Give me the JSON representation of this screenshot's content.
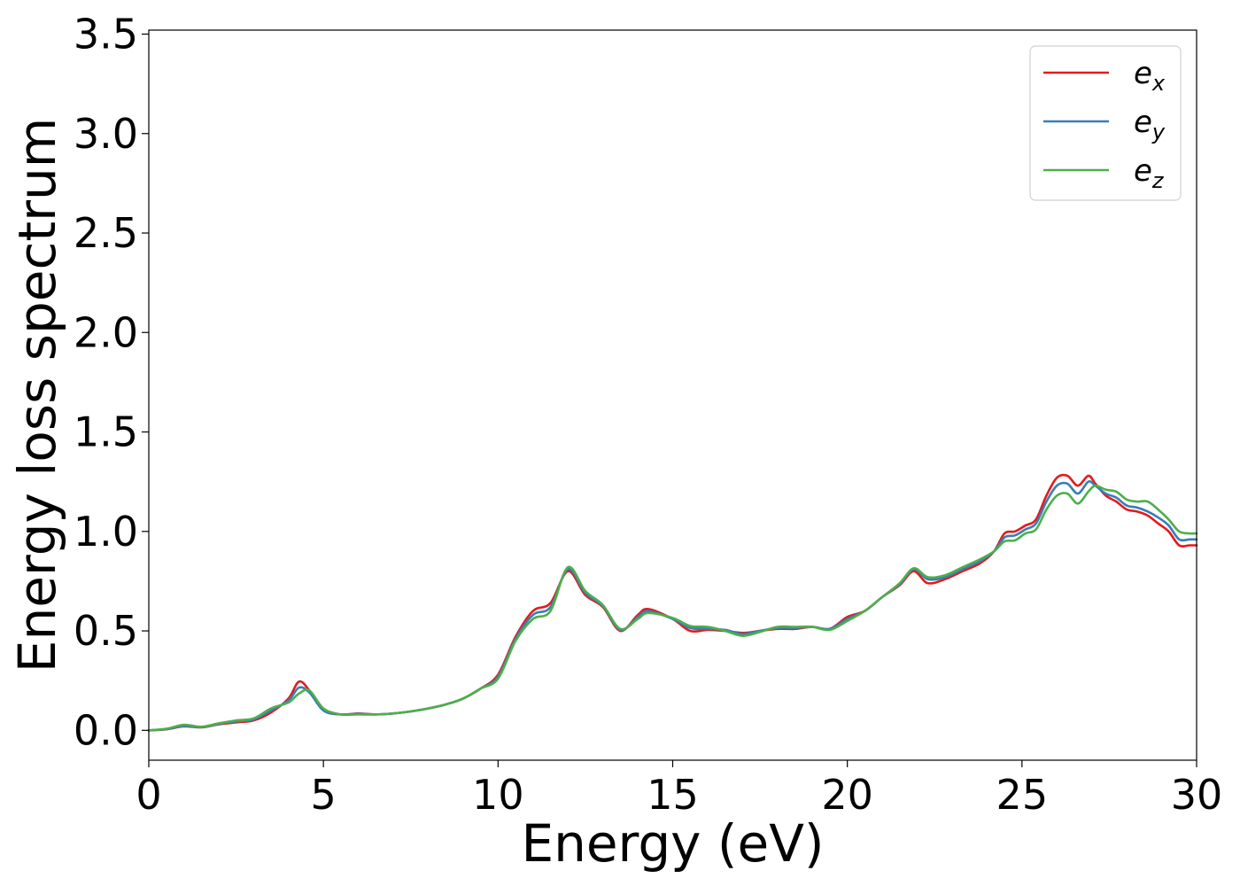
{
  "chart_data": {
    "type": "line",
    "title": "",
    "xlabel": "Energy (eV)",
    "ylabel": "Energy loss spectrum",
    "xlim": [
      0,
      30
    ],
    "ylim": [
      -0.15,
      3.52
    ],
    "xticks": [
      0,
      5,
      10,
      15,
      20,
      25,
      30
    ],
    "xtick_labels": [
      "0",
      "5",
      "10",
      "15",
      "20",
      "25",
      "30"
    ],
    "yticks": [
      0.0,
      0.5,
      1.0,
      1.5,
      2.0,
      2.5,
      3.0,
      3.5
    ],
    "ytick_labels": [
      "0.0",
      "0.5",
      "1.0",
      "1.5",
      "2.0",
      "2.5",
      "3.0",
      "3.5"
    ],
    "grid": false,
    "legend_position": "top-right",
    "series": [
      {
        "name": "e_x",
        "label_base": "e",
        "label_sub": "x",
        "color": "#e41a1c",
        "x": [
          0,
          0.5,
          1.0,
          1.5,
          2.0,
          2.5,
          3.0,
          3.5,
          4.0,
          4.3,
          4.6,
          5.0,
          5.5,
          6.0,
          6.5,
          7.0,
          7.5,
          8.0,
          8.5,
          9.0,
          9.5,
          10.0,
          10.5,
          11.0,
          11.5,
          12.0,
          12.5,
          13.0,
          13.5,
          14.0,
          14.3,
          15.0,
          15.5,
          16.0,
          16.5,
          17.0,
          17.5,
          18.0,
          18.5,
          19.0,
          19.5,
          20.0,
          20.5,
          21.0,
          21.5,
          21.9,
          22.3,
          22.8,
          23.3,
          23.8,
          24.2,
          24.5,
          24.8,
          25.1,
          25.4,
          25.7,
          26.0,
          26.3,
          26.6,
          26.9,
          27.1,
          27.4,
          27.7,
          28.0,
          28.3,
          28.6,
          28.9,
          29.2,
          29.5,
          29.8,
          30.0
        ],
        "y": [
          0.0,
          0.005,
          0.02,
          0.015,
          0.03,
          0.04,
          0.05,
          0.09,
          0.16,
          0.245,
          0.2,
          0.1,
          0.08,
          0.085,
          0.08,
          0.085,
          0.095,
          0.11,
          0.13,
          0.16,
          0.21,
          0.28,
          0.47,
          0.6,
          0.64,
          0.8,
          0.68,
          0.62,
          0.5,
          0.58,
          0.61,
          0.56,
          0.5,
          0.505,
          0.5,
          0.49,
          0.5,
          0.51,
          0.51,
          0.52,
          0.51,
          0.57,
          0.6,
          0.67,
          0.73,
          0.8,
          0.74,
          0.76,
          0.8,
          0.84,
          0.9,
          0.99,
          1.0,
          1.03,
          1.06,
          1.18,
          1.27,
          1.28,
          1.23,
          1.28,
          1.24,
          1.18,
          1.15,
          1.11,
          1.1,
          1.08,
          1.04,
          1.0,
          0.93,
          0.93,
          0.93
        ]
      },
      {
        "name": "e_y",
        "label_base": "e",
        "label_sub": "y",
        "color": "#377eb8",
        "x": [
          0,
          0.5,
          1.0,
          1.5,
          2.0,
          2.5,
          3.0,
          3.5,
          4.0,
          4.3,
          4.6,
          5.0,
          5.5,
          6.0,
          6.5,
          7.0,
          7.5,
          8.0,
          8.5,
          9.0,
          9.5,
          10.0,
          10.5,
          11.0,
          11.5,
          12.0,
          12.5,
          13.0,
          13.5,
          14.0,
          14.3,
          15.0,
          15.5,
          16.0,
          16.5,
          17.0,
          17.5,
          18.0,
          18.5,
          19.0,
          19.5,
          20.0,
          20.5,
          21.0,
          21.5,
          21.9,
          22.3,
          22.8,
          23.3,
          23.8,
          24.2,
          24.5,
          24.8,
          25.1,
          25.4,
          25.7,
          26.0,
          26.3,
          26.6,
          26.9,
          27.1,
          27.4,
          27.7,
          28.0,
          28.3,
          28.6,
          28.9,
          29.2,
          29.5,
          29.8,
          30.0
        ],
        "y": [
          0.0,
          0.006,
          0.022,
          0.016,
          0.032,
          0.045,
          0.055,
          0.1,
          0.15,
          0.215,
          0.19,
          0.1,
          0.08,
          0.083,
          0.08,
          0.085,
          0.095,
          0.11,
          0.13,
          0.16,
          0.21,
          0.27,
          0.46,
          0.58,
          0.62,
          0.81,
          0.69,
          0.625,
          0.505,
          0.57,
          0.6,
          0.56,
          0.515,
          0.51,
          0.505,
          0.485,
          0.5,
          0.515,
          0.515,
          0.52,
          0.51,
          0.56,
          0.6,
          0.67,
          0.735,
          0.81,
          0.76,
          0.77,
          0.81,
          0.85,
          0.9,
          0.97,
          0.98,
          1.01,
          1.04,
          1.15,
          1.23,
          1.24,
          1.19,
          1.25,
          1.23,
          1.19,
          1.17,
          1.13,
          1.12,
          1.1,
          1.07,
          1.03,
          0.96,
          0.96,
          0.96
        ]
      },
      {
        "name": "e_z",
        "label_base": "e",
        "label_sub": "z",
        "color": "#4daf4a",
        "x": [
          0,
          0.5,
          1.0,
          1.5,
          2.0,
          2.5,
          3.0,
          3.5,
          4.0,
          4.3,
          4.6,
          5.0,
          5.5,
          6.0,
          6.5,
          7.0,
          7.5,
          8.0,
          8.5,
          9.0,
          9.5,
          10.0,
          10.5,
          11.0,
          11.5,
          12.0,
          12.5,
          13.0,
          13.5,
          14.0,
          14.3,
          15.0,
          15.5,
          16.0,
          16.5,
          17.0,
          17.5,
          18.0,
          18.5,
          19.0,
          19.5,
          20.0,
          20.5,
          21.0,
          21.5,
          21.9,
          22.3,
          22.8,
          23.3,
          23.8,
          24.2,
          24.5,
          24.8,
          25.1,
          25.4,
          25.7,
          26.0,
          26.3,
          26.6,
          26.9,
          27.1,
          27.4,
          27.7,
          28.0,
          28.3,
          28.6,
          28.9,
          29.2,
          29.5,
          29.8,
          30.0
        ],
        "y": [
          0.0,
          0.008,
          0.028,
          0.018,
          0.035,
          0.05,
          0.06,
          0.11,
          0.14,
          0.185,
          0.2,
          0.11,
          0.08,
          0.08,
          0.08,
          0.085,
          0.095,
          0.11,
          0.13,
          0.16,
          0.21,
          0.26,
          0.45,
          0.56,
          0.6,
          0.82,
          0.7,
          0.63,
          0.51,
          0.56,
          0.59,
          0.565,
          0.525,
          0.52,
          0.5,
          0.475,
          0.495,
          0.52,
          0.52,
          0.52,
          0.505,
          0.55,
          0.6,
          0.67,
          0.74,
          0.815,
          0.77,
          0.78,
          0.82,
          0.86,
          0.9,
          0.95,
          0.955,
          0.99,
          1.01,
          1.11,
          1.18,
          1.19,
          1.14,
          1.2,
          1.23,
          1.21,
          1.2,
          1.16,
          1.15,
          1.15,
          1.11,
          1.06,
          1.0,
          0.99,
          0.99
        ]
      }
    ]
  }
}
